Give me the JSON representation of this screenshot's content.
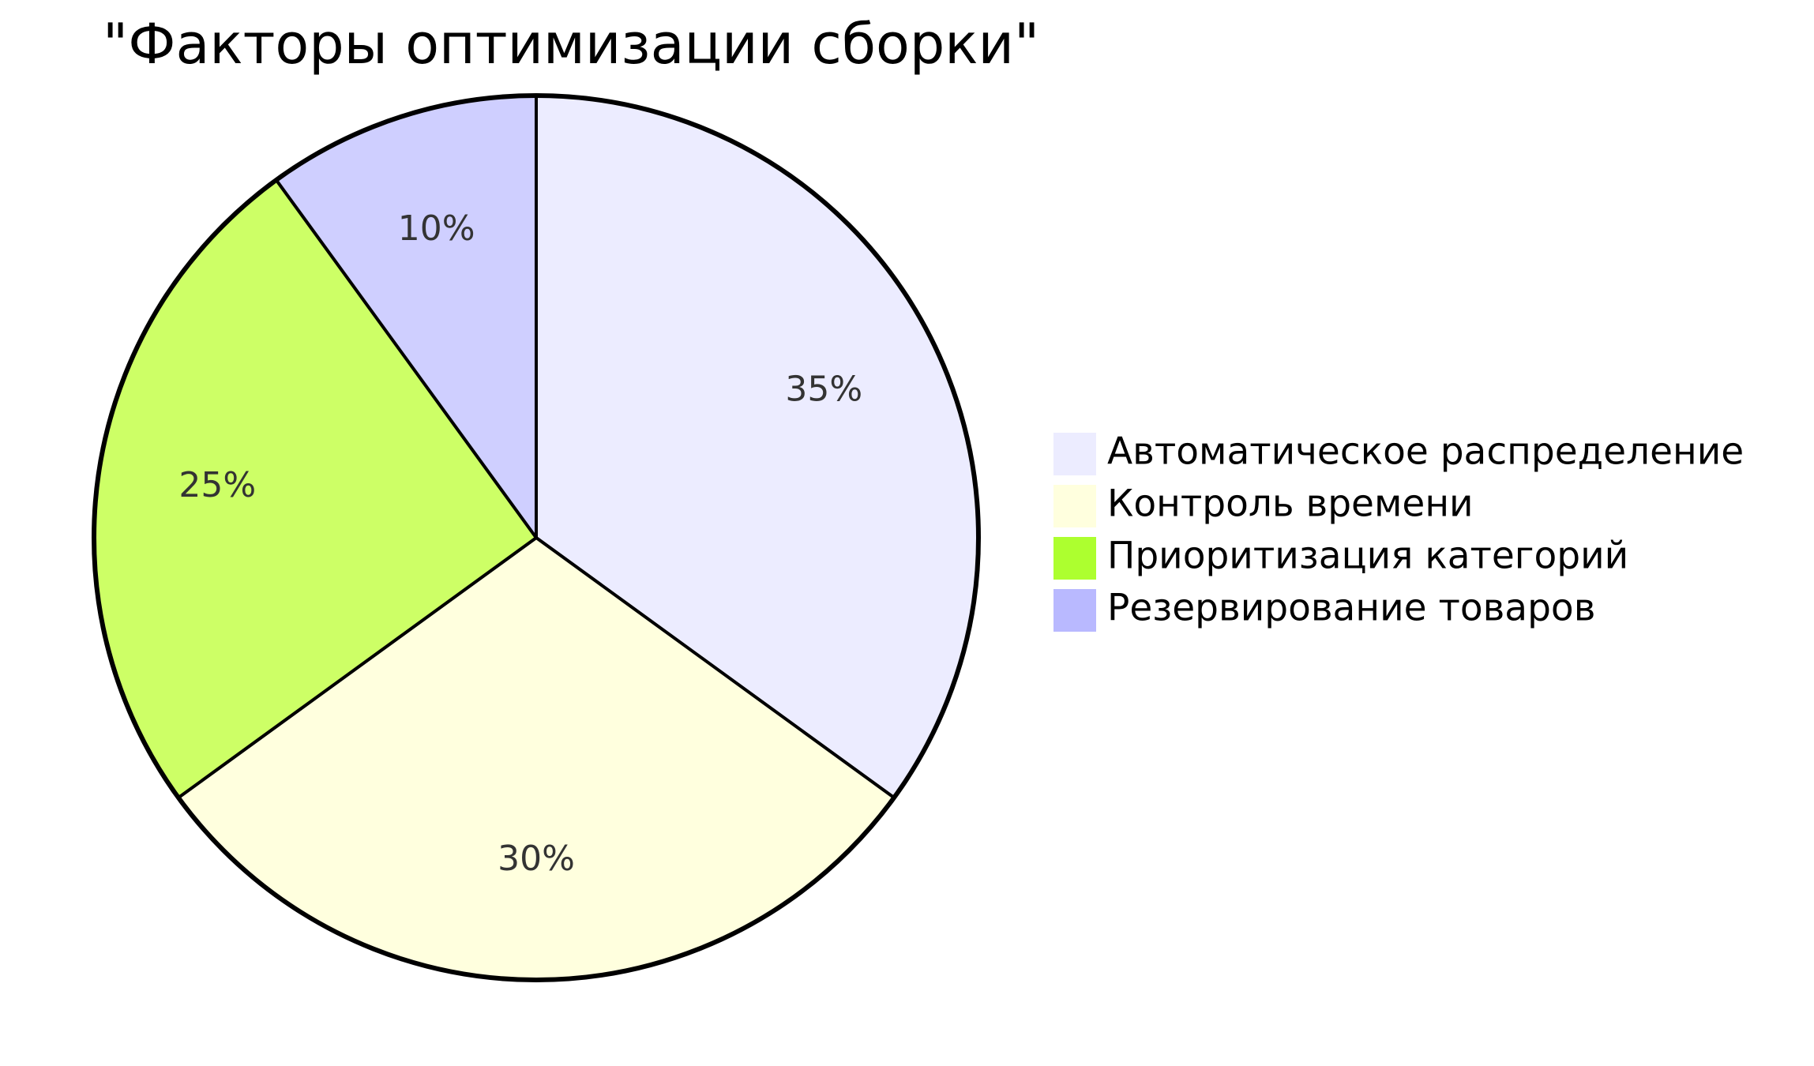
{
  "chart_data": {
    "type": "pie",
    "title": "\"Факторы оптимизации сборки\"",
    "legend_position": "right",
    "slices": [
      {
        "label": "Автоматическое распределение",
        "value": 35,
        "display": "35%",
        "color": "#ECECFF"
      },
      {
        "label": "Контроль времени",
        "value": 30,
        "display": "30%",
        "color": "#FFFFDE"
      },
      {
        "label": "Приоритизация категорий",
        "value": 25,
        "display": "25%",
        "color": "#ADFF2F",
        "slice_color": "#CDFF66"
      },
      {
        "label": "Резервирование товаров",
        "value": 10,
        "display": "10%",
        "color": "#B9B9FF",
        "slice_color": "#CFCFFF"
      }
    ]
  }
}
